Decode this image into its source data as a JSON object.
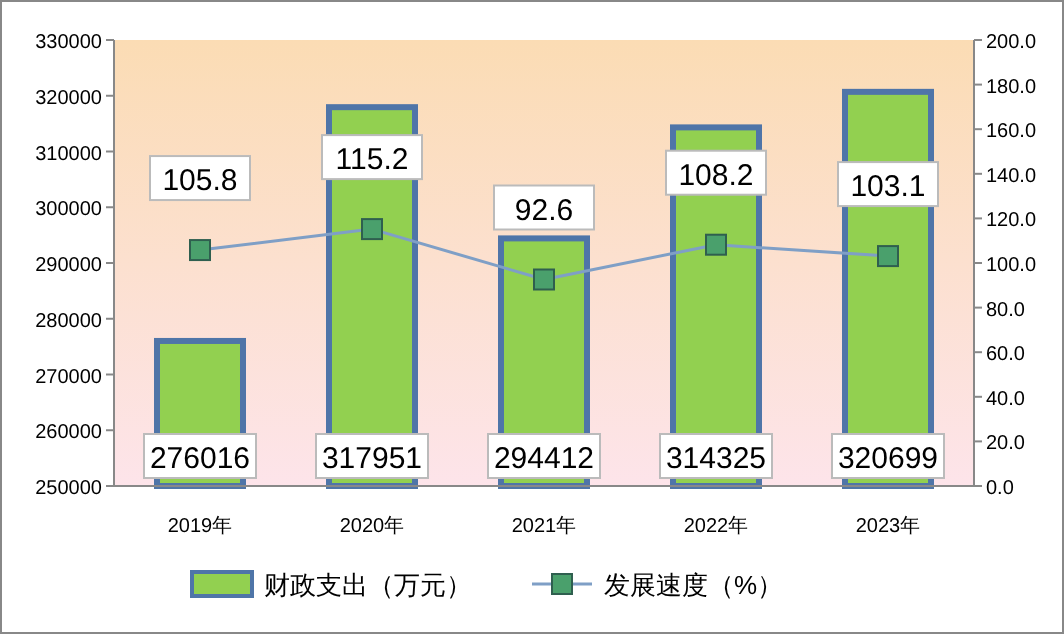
{
  "chart_data": {
    "type": "bar",
    "categories": [
      "2019年",
      "2020年",
      "2021年",
      "2022年",
      "2023年"
    ],
    "series": [
      {
        "name": "财政支出（万元）",
        "color": "#92d050",
        "values": [
          276016,
          317951,
          294412,
          314325,
          320699
        ]
      },
      {
        "name": "发展速度（%）",
        "type": "line",
        "axis": "y2",
        "color": "#7f9fc6",
        "values": [
          105.8,
          115.2,
          92.6,
          108.2,
          103.1
        ]
      }
    ],
    "ylim": [
      250000,
      330000
    ],
    "yticks": [
      250000,
      260000,
      270000,
      280000,
      290000,
      300000,
      310000,
      320000,
      330000
    ],
    "y2lim": [
      0,
      200
    ],
    "y2ticks": [
      {
        "value": 0,
        "label": "0.0"
      },
      {
        "value": 20,
        "label": "20.0"
      },
      {
        "value": 40,
        "label": "40.0"
      },
      {
        "value": 60,
        "label": "60.0"
      },
      {
        "value": 80,
        "label": "80.0"
      },
      {
        "value": 100,
        "label": "100.0"
      },
      {
        "value": 120,
        "label": "120.0"
      },
      {
        "value": 140,
        "label": "140.0"
      },
      {
        "value": 160,
        "label": "160.0"
      },
      {
        "value": 180,
        "label": "180.0"
      },
      {
        "value": 200,
        "label": "200.0"
      }
    ],
    "data_labels": true,
    "legend": "bottom",
    "marker": "square",
    "grid": false
  }
}
